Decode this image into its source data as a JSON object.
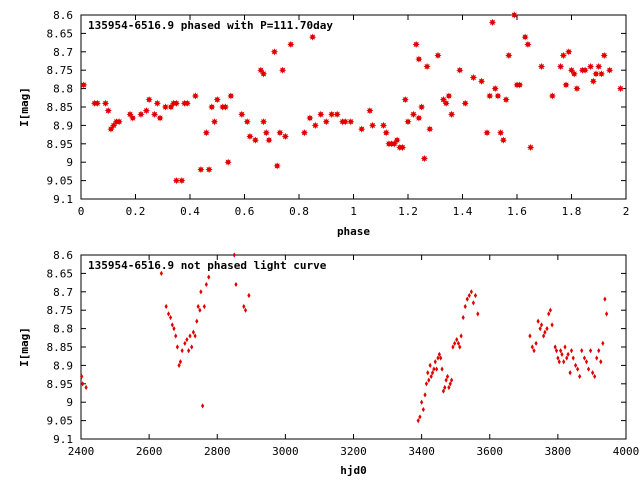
{
  "chart_data": [
    {
      "type": "scatter",
      "title": "135954-6516.9 phased with P=111.70day",
      "xlabel": "phase",
      "ylabel": "I[mag]",
      "xlim": [
        0,
        2
      ],
      "ylim": [
        8.6,
        9.1
      ],
      "y_inverted": true,
      "grid": false,
      "marker_color": "#e00000",
      "marker": "filled-star",
      "xticks": [
        "0",
        "0.2",
        "0.4",
        "0.6",
        "0.8",
        "1",
        "1.2",
        "1.4",
        "1.6",
        "1.8",
        "2"
      ],
      "yticks": [
        "8.6",
        "8.65",
        "8.7",
        "8.75",
        "8.8",
        "8.85",
        "8.9",
        "8.95",
        "9",
        "9.05",
        "9.1"
      ],
      "points": [
        [
          0.01,
          8.79
        ],
        [
          0.05,
          8.84
        ],
        [
          0.06,
          8.84
        ],
        [
          0.09,
          8.84
        ],
        [
          0.1,
          8.86
        ],
        [
          0.11,
          8.91
        ],
        [
          0.12,
          8.9
        ],
        [
          0.13,
          8.89
        ],
        [
          0.14,
          8.89
        ],
        [
          0.18,
          8.87
        ],
        [
          0.19,
          8.88
        ],
        [
          0.22,
          8.87
        ],
        [
          0.24,
          8.86
        ],
        [
          0.25,
          8.83
        ],
        [
          0.27,
          8.87
        ],
        [
          0.28,
          8.84
        ],
        [
          0.29,
          8.88
        ],
        [
          0.31,
          8.85
        ],
        [
          0.33,
          8.85
        ],
        [
          0.34,
          8.84
        ],
        [
          0.35,
          8.84
        ],
        [
          0.35,
          9.05
        ],
        [
          0.37,
          9.05
        ],
        [
          0.38,
          8.84
        ],
        [
          0.39,
          8.84
        ],
        [
          0.42,
          8.82
        ],
        [
          0.44,
          9.02
        ],
        [
          0.46,
          8.92
        ],
        [
          0.47,
          9.02
        ],
        [
          0.48,
          8.85
        ],
        [
          0.49,
          8.89
        ],
        [
          0.5,
          8.83
        ],
        [
          0.52,
          8.85
        ],
        [
          0.53,
          8.85
        ],
        [
          0.54,
          9.0
        ],
        [
          0.55,
          8.82
        ],
        [
          0.59,
          8.87
        ],
        [
          0.61,
          8.89
        ],
        [
          0.62,
          8.93
        ],
        [
          0.64,
          8.94
        ],
        [
          0.66,
          8.75
        ],
        [
          0.67,
          8.76
        ],
        [
          0.67,
          8.89
        ],
        [
          0.68,
          8.92
        ],
        [
          0.69,
          8.94
        ],
        [
          0.71,
          8.7
        ],
        [
          0.72,
          9.01
        ],
        [
          0.73,
          8.92
        ],
        [
          0.74,
          8.75
        ],
        [
          0.75,
          8.93
        ],
        [
          0.77,
          8.68
        ],
        [
          0.82,
          8.92
        ],
        [
          0.84,
          8.88
        ],
        [
          0.85,
          8.66
        ],
        [
          0.86,
          8.9
        ],
        [
          0.88,
          8.87
        ],
        [
          0.9,
          8.89
        ],
        [
          0.92,
          8.87
        ],
        [
          0.94,
          8.87
        ],
        [
          0.96,
          8.89
        ],
        [
          0.97,
          8.89
        ],
        [
          0.99,
          8.89
        ],
        [
          1.03,
          8.91
        ],
        [
          1.06,
          8.86
        ],
        [
          1.07,
          8.9
        ],
        [
          1.11,
          8.9
        ],
        [
          1.12,
          8.92
        ],
        [
          1.13,
          8.95
        ],
        [
          1.14,
          8.95
        ],
        [
          1.15,
          8.95
        ],
        [
          1.16,
          8.94
        ],
        [
          1.17,
          8.96
        ],
        [
          1.18,
          8.96
        ],
        [
          1.19,
          8.83
        ],
        [
          1.2,
          8.89
        ],
        [
          1.22,
          8.87
        ],
        [
          1.23,
          8.68
        ],
        [
          1.24,
          8.72
        ],
        [
          1.24,
          8.88
        ],
        [
          1.25,
          8.85
        ],
        [
          1.26,
          8.99
        ],
        [
          1.27,
          8.74
        ],
        [
          1.28,
          8.91
        ],
        [
          1.31,
          8.71
        ],
        [
          1.33,
          8.83
        ],
        [
          1.34,
          8.84
        ],
        [
          1.35,
          8.82
        ],
        [
          1.36,
          8.87
        ],
        [
          1.39,
          8.75
        ],
        [
          1.41,
          8.84
        ],
        [
          1.44,
          8.77
        ],
        [
          1.47,
          8.78
        ],
        [
          1.49,
          8.92
        ],
        [
          1.5,
          8.82
        ],
        [
          1.51,
          8.62
        ],
        [
          1.52,
          8.8
        ],
        [
          1.53,
          8.82
        ],
        [
          1.54,
          8.92
        ],
        [
          1.55,
          8.94
        ],
        [
          1.56,
          8.83
        ],
        [
          1.57,
          8.71
        ],
        [
          1.59,
          8.6
        ],
        [
          1.6,
          8.79
        ],
        [
          1.61,
          8.79
        ],
        [
          1.63,
          8.66
        ],
        [
          1.64,
          8.68
        ],
        [
          1.65,
          8.96
        ],
        [
          1.69,
          8.74
        ],
        [
          1.73,
          8.82
        ],
        [
          1.76,
          8.74
        ],
        [
          1.77,
          8.71
        ],
        [
          1.78,
          8.79
        ],
        [
          1.79,
          8.7
        ],
        [
          1.8,
          8.75
        ],
        [
          1.81,
          8.76
        ],
        [
          1.82,
          8.8
        ],
        [
          1.84,
          8.75
        ],
        [
          1.85,
          8.75
        ],
        [
          1.87,
          8.74
        ],
        [
          1.88,
          8.78
        ],
        [
          1.89,
          8.76
        ],
        [
          1.9,
          8.74
        ],
        [
          1.91,
          8.76
        ],
        [
          1.92,
          8.71
        ],
        [
          1.94,
          8.75
        ],
        [
          1.98,
          8.8
        ]
      ]
    },
    {
      "type": "scatter",
      "title": "135954-6516.9 not phased light curve",
      "xlabel": "hjd0",
      "ylabel": "I[mag]",
      "xlim": [
        2400,
        4000
      ],
      "ylim": [
        8.6,
        9.1
      ],
      "y_inverted": true,
      "grid": false,
      "marker_color": "#e00000",
      "marker": "small-diamond",
      "xticks": [
        "2400",
        "2600",
        "2800",
        "3000",
        "3200",
        "3400",
        "3600",
        "3800",
        "4000"
      ],
      "yticks": [
        "8.6",
        "8.65",
        "8.7",
        "8.75",
        "8.8",
        "8.85",
        "8.9",
        "8.95",
        "9",
        "9.05",
        "9.1"
      ],
      "points": [
        [
          2402,
          8.93
        ],
        [
          2405,
          8.95
        ],
        [
          2415,
          8.96
        ],
        [
          2636,
          8.65
        ],
        [
          2650,
          8.74
        ],
        [
          2657,
          8.76
        ],
        [
          2663,
          8.77
        ],
        [
          2668,
          8.79
        ],
        [
          2673,
          8.8
        ],
        [
          2678,
          8.82
        ],
        [
          2683,
          8.85
        ],
        [
          2688,
          8.9
        ],
        [
          2692,
          8.89
        ],
        [
          2697,
          8.86
        ],
        [
          2705,
          8.84
        ],
        [
          2711,
          8.83
        ],
        [
          2716,
          8.86
        ],
        [
          2720,
          8.82
        ],
        [
          2725,
          8.85
        ],
        [
          2730,
          8.81
        ],
        [
          2735,
          8.82
        ],
        [
          2740,
          8.78
        ],
        [
          2744,
          8.74
        ],
        [
          2749,
          8.75
        ],
        [
          2752,
          8.7
        ],
        [
          2757,
          9.01
        ],
        [
          2762,
          8.74
        ],
        [
          2768,
          8.68
        ],
        [
          2775,
          8.66
        ],
        [
          2850,
          8.6
        ],
        [
          2855,
          8.68
        ],
        [
          2878,
          8.74
        ],
        [
          2883,
          8.75
        ],
        [
          2893,
          8.71
        ],
        [
          3390,
          9.05
        ],
        [
          3395,
          9.04
        ],
        [
          3400,
          9.0
        ],
        [
          3405,
          9.02
        ],
        [
          3410,
          8.98
        ],
        [
          3414,
          8.95
        ],
        [
          3418,
          8.92
        ],
        [
          3421,
          8.94
        ],
        [
          3425,
          8.9
        ],
        [
          3428,
          8.93
        ],
        [
          3432,
          8.92
        ],
        [
          3436,
          8.91
        ],
        [
          3440,
          8.89
        ],
        [
          3444,
          8.91
        ],
        [
          3448,
          8.88
        ],
        [
          3452,
          8.87
        ],
        [
          3456,
          8.88
        ],
        [
          3460,
          8.91
        ],
        [
          3464,
          8.97
        ],
        [
          3468,
          8.96
        ],
        [
          3472,
          8.94
        ],
        [
          3476,
          8.93
        ],
        [
          3480,
          8.96
        ],
        [
          3484,
          8.95
        ],
        [
          3488,
          8.94
        ],
        [
          3492,
          8.85
        ],
        [
          3497,
          8.84
        ],
        [
          3503,
          8.83
        ],
        [
          3508,
          8.84
        ],
        [
          3512,
          8.85
        ],
        [
          3516,
          8.82
        ],
        [
          3522,
          8.77
        ],
        [
          3528,
          8.74
        ],
        [
          3534,
          8.72
        ],
        [
          3540,
          8.71
        ],
        [
          3546,
          8.7
        ],
        [
          3552,
          8.73
        ],
        [
          3558,
          8.71
        ],
        [
          3565,
          8.76
        ],
        [
          3718,
          8.82
        ],
        [
          3725,
          8.85
        ],
        [
          3730,
          8.86
        ],
        [
          3736,
          8.84
        ],
        [
          3742,
          8.78
        ],
        [
          3748,
          8.8
        ],
        [
          3752,
          8.79
        ],
        [
          3758,
          8.82
        ],
        [
          3762,
          8.81
        ],
        [
          3768,
          8.8
        ],
        [
          3773,
          8.76
        ],
        [
          3778,
          8.75
        ],
        [
          3783,
          8.79
        ],
        [
          3792,
          8.85
        ],
        [
          3796,
          8.86
        ],
        [
          3800,
          8.88
        ],
        [
          3804,
          8.89
        ],
        [
          3808,
          8.86
        ],
        [
          3812,
          8.87
        ],
        [
          3817,
          8.89
        ],
        [
          3821,
          8.85
        ],
        [
          3826,
          8.88
        ],
        [
          3830,
          8.87
        ],
        [
          3836,
          8.92
        ],
        [
          3840,
          8.86
        ],
        [
          3845,
          8.88
        ],
        [
          3852,
          8.9
        ],
        [
          3858,
          8.91
        ],
        [
          3864,
          8.93
        ],
        [
          3870,
          8.86
        ],
        [
          3878,
          8.88
        ],
        [
          3884,
          8.89
        ],
        [
          3890,
          8.91
        ],
        [
          3896,
          8.86
        ],
        [
          3902,
          8.92
        ],
        [
          3908,
          8.93
        ],
        [
          3914,
          8.88
        ],
        [
          3920,
          8.86
        ],
        [
          3926,
          8.89
        ],
        [
          3932,
          8.84
        ],
        [
          3938,
          8.72
        ],
        [
          3943,
          8.76
        ]
      ]
    }
  ]
}
